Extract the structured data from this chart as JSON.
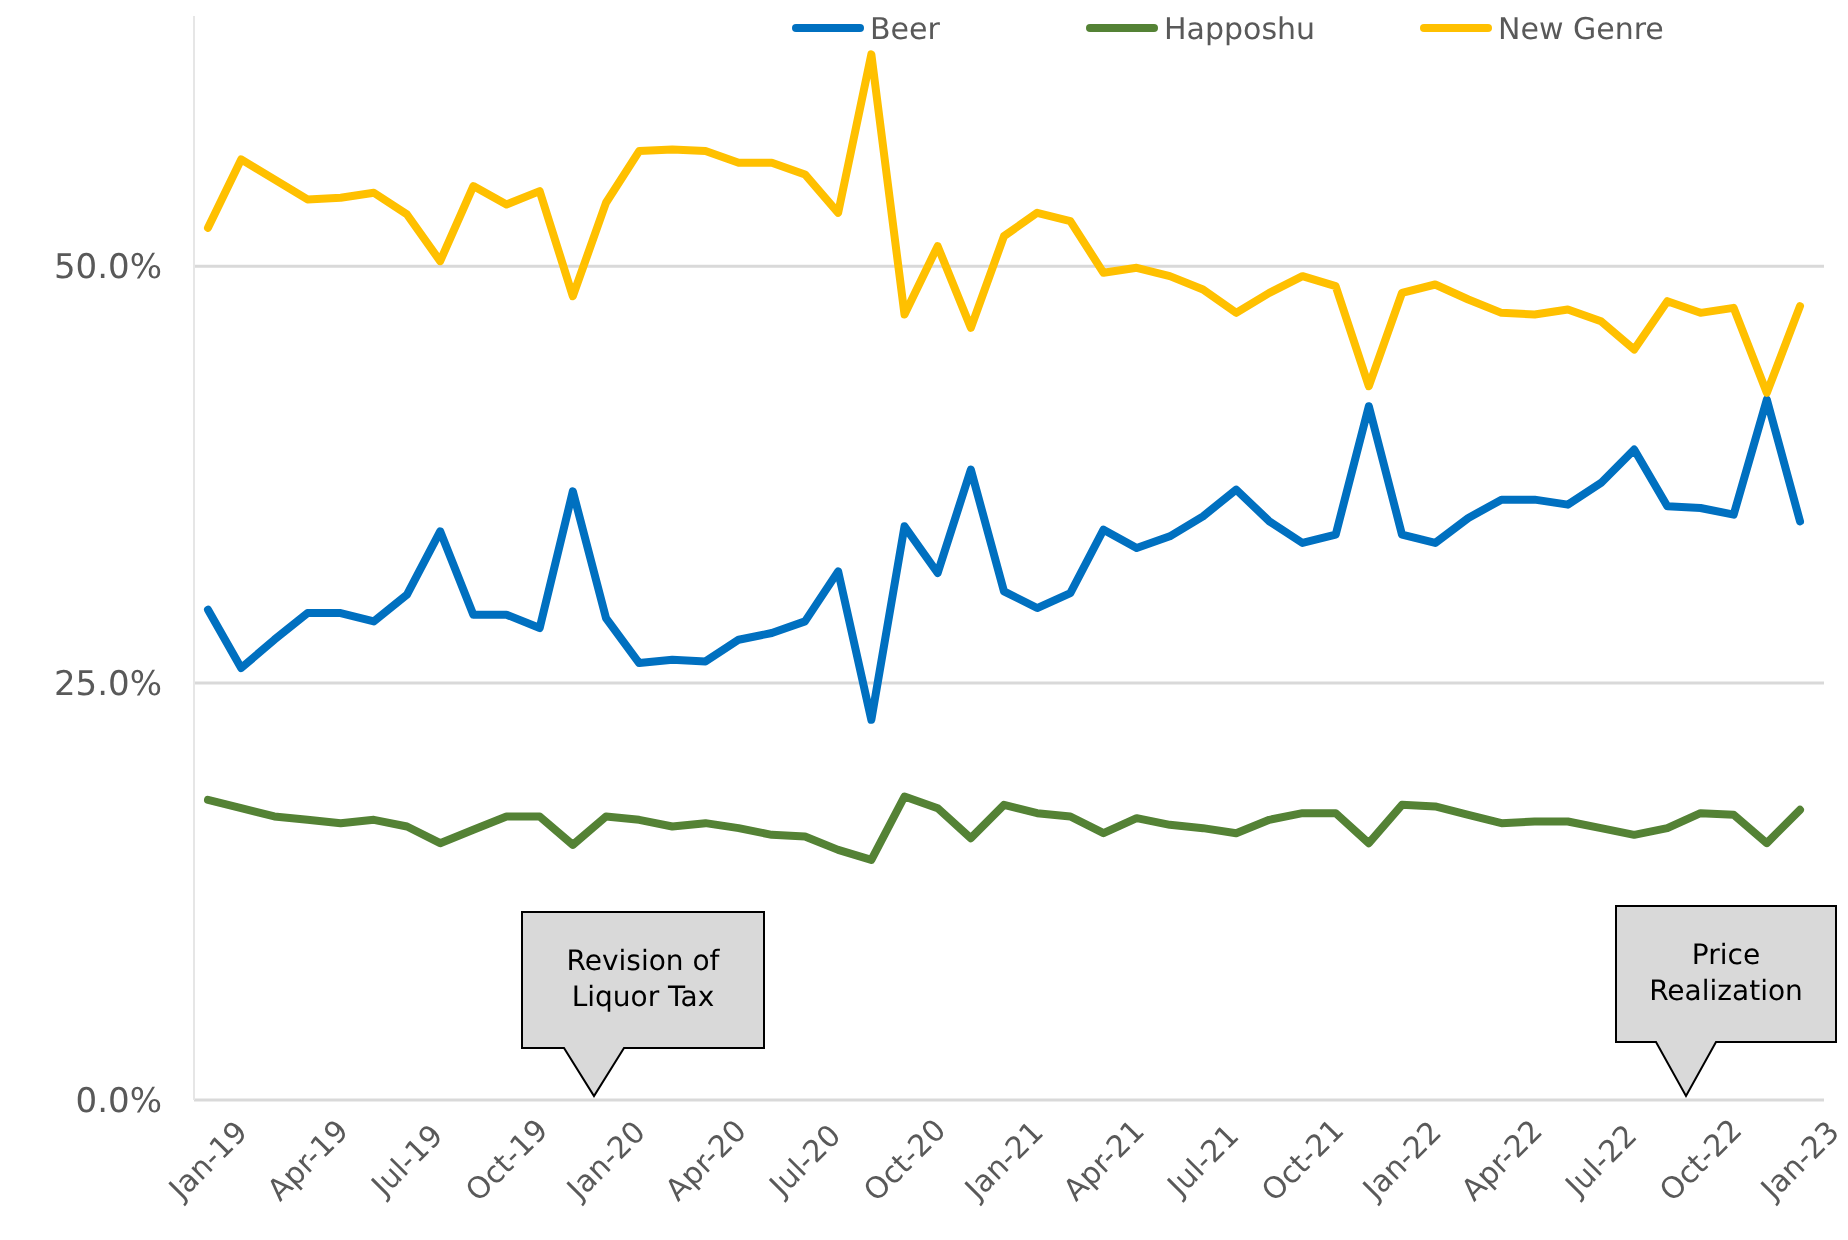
{
  "chart_data": {
    "type": "line",
    "categories": [
      "Jan-19",
      null,
      null,
      "Apr-19",
      null,
      null,
      "Jul-19",
      null,
      null,
      "Oct-19",
      null,
      null,
      "Jan-20",
      null,
      null,
      "Apr-20",
      null,
      null,
      "Jul-20",
      null,
      null,
      "Oct-20",
      null,
      null,
      "Jan-21",
      null,
      null,
      "Apr-21",
      null,
      null,
      "Jul-21",
      null,
      null,
      "Oct-21",
      null,
      null,
      "Jan-22",
      null,
      null,
      "Apr-22",
      null,
      null,
      "Jul-22",
      null,
      null,
      "Oct-22",
      null,
      null,
      "Jan-23"
    ],
    "series": [
      {
        "name": "Beer",
        "color": "#0070c0",
        "values": [
          29.4,
          25.9,
          27.6,
          29.2,
          29.2,
          28.7,
          30.3,
          34.1,
          29.1,
          29.1,
          28.3,
          36.5,
          28.9,
          26.2,
          26.4,
          26.3,
          27.6,
          28.0,
          28.7,
          31.7,
          22.8,
          34.4,
          31.6,
          37.8,
          30.5,
          29.5,
          30.4,
          34.2,
          33.1,
          33.8,
          35.0,
          36.6,
          34.7,
          33.4,
          33.9,
          41.6,
          33.9,
          33.4,
          34.9,
          36.0,
          36.0,
          35.7,
          37.0,
          39.0,
          35.6,
          35.5,
          35.1,
          42.0,
          34.7
        ]
      },
      {
        "name": "Happoshu",
        "color": "#548235",
        "values": [
          18.0,
          17.5,
          17.0,
          16.8,
          16.6,
          16.8,
          16.4,
          15.4,
          16.2,
          17.0,
          17.0,
          15.3,
          17.0,
          16.8,
          16.4,
          16.6,
          16.3,
          15.9,
          15.8,
          15.0,
          14.4,
          18.2,
          17.5,
          15.7,
          17.7,
          17.2,
          17.0,
          16.0,
          16.9,
          16.5,
          16.3,
          16.0,
          16.8,
          17.2,
          17.2,
          15.4,
          17.7,
          17.6,
          17.1,
          16.6,
          16.7,
          16.7,
          16.3,
          15.9,
          16.3,
          17.2,
          17.1,
          15.4,
          17.4
        ]
      },
      {
        "name": "New Genre",
        "color": "#ffc000",
        "values": [
          52.3,
          56.4,
          55.2,
          54.0,
          54.1,
          54.4,
          53.1,
          50.3,
          54.8,
          53.7,
          54.5,
          48.2,
          53.8,
          56.9,
          57.0,
          56.9,
          56.2,
          56.2,
          55.5,
          53.2,
          62.7,
          47.1,
          51.2,
          46.3,
          51.8,
          53.2,
          52.7,
          49.6,
          49.9,
          49.4,
          48.6,
          47.2,
          48.4,
          49.4,
          48.8,
          42.8,
          48.4,
          48.9,
          48.0,
          47.2,
          47.1,
          47.4,
          46.7,
          45.0,
          47.9,
          47.2,
          47.5,
          42.4,
          47.6
        ]
      }
    ],
    "ylim": [
      0,
      65
    ],
    "yticks": [
      {
        "value": 0,
        "label": "0.0%"
      },
      {
        "value": 25,
        "label": "25.0%"
      },
      {
        "value": 50,
        "label": "50.0%"
      }
    ],
    "grid": "y",
    "legend": "top right",
    "line_style": "solid",
    "marker": "none",
    "annotations": [
      "Revision of Liquor Tax",
      "Price Realization"
    ]
  }
}
